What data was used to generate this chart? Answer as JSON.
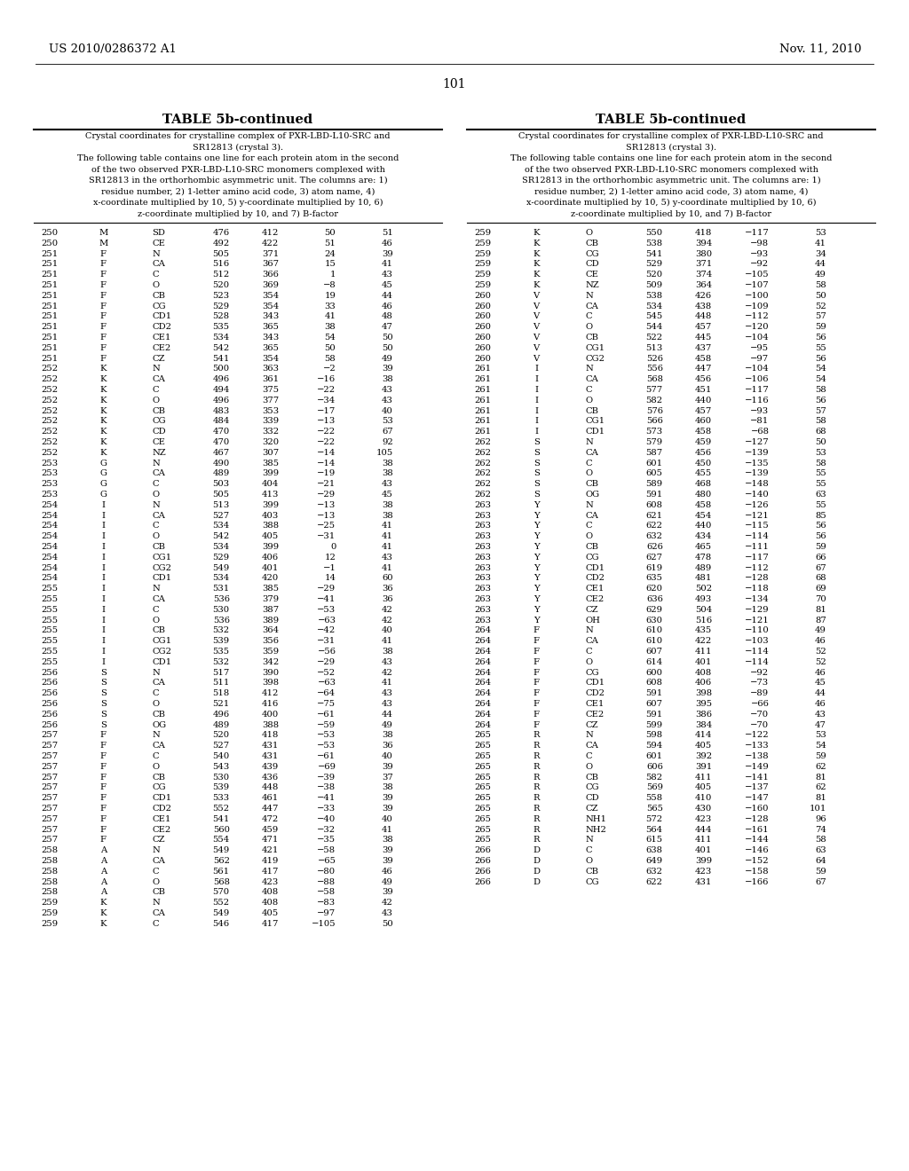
{
  "page_header_left": "US 2010/0286372 A1",
  "page_header_right": "Nov. 11, 2010",
  "page_number": "101",
  "table_title": "TABLE 5b-continued",
  "description_lines": [
    "Crystal coordinates for crystalline complex of PXR-LBD-L10-SRC and",
    "SR12813 (crystal 3).",
    "The following table contains one line for each protein atom in the second",
    "of the two observed PXR-LBD-L10-SRC monomers complexed with",
    "SR12813 in the orthorhombic asymmetric unit. The columns are: 1)",
    "residue number, 2) 1-letter amino acid code, 3) atom name, 4)",
    "x-coordinate multiplied by 10, 5) y-coordinate multiplied by 10, 6)",
    "z-coordinate multiplied by 10, and 7) B-factor"
  ],
  "left_table_data": [
    [
      "250",
      "M",
      "SD",
      "476",
      "412",
      "50",
      "51"
    ],
    [
      "250",
      "M",
      "CE",
      "492",
      "422",
      "51",
      "46"
    ],
    [
      "251",
      "F",
      "N",
      "505",
      "371",
      "24",
      "39"
    ],
    [
      "251",
      "F",
      "CA",
      "516",
      "367",
      "15",
      "41"
    ],
    [
      "251",
      "F",
      "C",
      "512",
      "366",
      "1",
      "43"
    ],
    [
      "251",
      "F",
      "O",
      "520",
      "369",
      "−8",
      "45"
    ],
    [
      "251",
      "F",
      "CB",
      "523",
      "354",
      "19",
      "44"
    ],
    [
      "251",
      "F",
      "CG",
      "529",
      "354",
      "33",
      "46"
    ],
    [
      "251",
      "F",
      "CD1",
      "528",
      "343",
      "41",
      "48"
    ],
    [
      "251",
      "F",
      "CD2",
      "535",
      "365",
      "38",
      "47"
    ],
    [
      "251",
      "F",
      "CE1",
      "534",
      "343",
      "54",
      "50"
    ],
    [
      "251",
      "F",
      "CE2",
      "542",
      "365",
      "50",
      "50"
    ],
    [
      "251",
      "F",
      "CZ",
      "541",
      "354",
      "58",
      "49"
    ],
    [
      "252",
      "K",
      "N",
      "500",
      "363",
      "−2",
      "39"
    ],
    [
      "252",
      "K",
      "CA",
      "496",
      "361",
      "−16",
      "38"
    ],
    [
      "252",
      "K",
      "C",
      "494",
      "375",
      "−22",
      "43"
    ],
    [
      "252",
      "K",
      "O",
      "496",
      "377",
      "−34",
      "43"
    ],
    [
      "252",
      "K",
      "CB",
      "483",
      "353",
      "−17",
      "40"
    ],
    [
      "252",
      "K",
      "CG",
      "484",
      "339",
      "−13",
      "53"
    ],
    [
      "252",
      "K",
      "CD",
      "470",
      "332",
      "−22",
      "67"
    ],
    [
      "252",
      "K",
      "CE",
      "470",
      "320",
      "−22",
      "92"
    ],
    [
      "252",
      "K",
      "NZ",
      "467",
      "307",
      "−14",
      "105"
    ],
    [
      "253",
      "G",
      "N",
      "490",
      "385",
      "−14",
      "38"
    ],
    [
      "253",
      "G",
      "CA",
      "489",
      "399",
      "−19",
      "38"
    ],
    [
      "253",
      "G",
      "C",
      "503",
      "404",
      "−21",
      "43"
    ],
    [
      "253",
      "G",
      "O",
      "505",
      "413",
      "−29",
      "45"
    ],
    [
      "254",
      "I",
      "N",
      "513",
      "399",
      "−13",
      "38"
    ],
    [
      "254",
      "I",
      "CA",
      "527",
      "403",
      "−13",
      "38"
    ],
    [
      "254",
      "I",
      "C",
      "534",
      "388",
      "−25",
      "41"
    ],
    [
      "254",
      "I",
      "O",
      "542",
      "405",
      "−31",
      "41"
    ],
    [
      "254",
      "I",
      "CB",
      "534",
      "399",
      "0",
      "41"
    ],
    [
      "254",
      "I",
      "CG1",
      "529",
      "406",
      "12",
      "43"
    ],
    [
      "254",
      "I",
      "CG2",
      "549",
      "401",
      "−1",
      "41"
    ],
    [
      "254",
      "I",
      "CD1",
      "534",
      "420",
      "14",
      "60"
    ],
    [
      "255",
      "I",
      "N",
      "531",
      "385",
      "−29",
      "36"
    ],
    [
      "255",
      "I",
      "CA",
      "536",
      "379",
      "−41",
      "36"
    ],
    [
      "255",
      "I",
      "C",
      "530",
      "387",
      "−53",
      "42"
    ],
    [
      "255",
      "I",
      "O",
      "536",
      "389",
      "−63",
      "42"
    ],
    [
      "255",
      "I",
      "CB",
      "532",
      "364",
      "−42",
      "40"
    ],
    [
      "255",
      "I",
      "CG1",
      "539",
      "356",
      "−31",
      "41"
    ],
    [
      "255",
      "I",
      "CG2",
      "535",
      "359",
      "−56",
      "38"
    ],
    [
      "255",
      "I",
      "CD1",
      "532",
      "342",
      "−29",
      "43"
    ],
    [
      "256",
      "S",
      "N",
      "517",
      "390",
      "−52",
      "42"
    ],
    [
      "256",
      "S",
      "CA",
      "511",
      "398",
      "−63",
      "41"
    ],
    [
      "256",
      "S",
      "C",
      "518",
      "412",
      "−64",
      "43"
    ],
    [
      "256",
      "S",
      "O",
      "521",
      "416",
      "−75",
      "43"
    ],
    [
      "256",
      "S",
      "CB",
      "496",
      "400",
      "−61",
      "44"
    ],
    [
      "256",
      "S",
      "OG",
      "489",
      "388",
      "−59",
      "49"
    ],
    [
      "257",
      "F",
      "N",
      "520",
      "418",
      "−53",
      "38"
    ],
    [
      "257",
      "F",
      "CA",
      "527",
      "431",
      "−53",
      "36"
    ],
    [
      "257",
      "F",
      "C",
      "540",
      "431",
      "−61",
      "40"
    ],
    [
      "257",
      "F",
      "O",
      "543",
      "439",
      "−69",
      "39"
    ],
    [
      "257",
      "F",
      "CB",
      "530",
      "436",
      "−39",
      "37"
    ],
    [
      "257",
      "F",
      "CG",
      "539",
      "448",
      "−38",
      "38"
    ],
    [
      "257",
      "F",
      "CD1",
      "533",
      "461",
      "−41",
      "39"
    ],
    [
      "257",
      "F",
      "CD2",
      "552",
      "447",
      "−33",
      "39"
    ],
    [
      "257",
      "F",
      "CE1",
      "541",
      "472",
      "−40",
      "40"
    ],
    [
      "257",
      "F",
      "CE2",
      "560",
      "459",
      "−32",
      "41"
    ],
    [
      "257",
      "F",
      "CZ",
      "554",
      "471",
      "−35",
      "38"
    ],
    [
      "258",
      "A",
      "N",
      "549",
      "421",
      "−58",
      "39"
    ],
    [
      "258",
      "A",
      "CA",
      "562",
      "419",
      "−65",
      "39"
    ],
    [
      "258",
      "A",
      "C",
      "561",
      "417",
      "−80",
      "46"
    ],
    [
      "258",
      "A",
      "O",
      "568",
      "423",
      "−88",
      "49"
    ],
    [
      "258",
      "A",
      "CB",
      "570",
      "408",
      "−58",
      "39"
    ],
    [
      "259",
      "K",
      "N",
      "552",
      "408",
      "−83",
      "42"
    ],
    [
      "259",
      "K",
      "CA",
      "549",
      "405",
      "−97",
      "43"
    ],
    [
      "259",
      "K",
      "C",
      "546",
      "417",
      "−105",
      "50"
    ]
  ],
  "right_table_data": [
    [
      "259",
      "K",
      "O",
      "550",
      "418",
      "−117",
      "53"
    ],
    [
      "259",
      "K",
      "CB",
      "538",
      "394",
      "−98",
      "41"
    ],
    [
      "259",
      "K",
      "CG",
      "541",
      "380",
      "−93",
      "34"
    ],
    [
      "259",
      "K",
      "CD",
      "529",
      "371",
      "−92",
      "44"
    ],
    [
      "259",
      "K",
      "CE",
      "520",
      "374",
      "−105",
      "49"
    ],
    [
      "259",
      "K",
      "NZ",
      "509",
      "364",
      "−107",
      "58"
    ],
    [
      "260",
      "V",
      "N",
      "538",
      "426",
      "−100",
      "50"
    ],
    [
      "260",
      "V",
      "CA",
      "534",
      "438",
      "−109",
      "52"
    ],
    [
      "260",
      "V",
      "C",
      "545",
      "448",
      "−112",
      "57"
    ],
    [
      "260",
      "V",
      "O",
      "544",
      "457",
      "−120",
      "59"
    ],
    [
      "260",
      "V",
      "CB",
      "522",
      "445",
      "−104",
      "56"
    ],
    [
      "260",
      "V",
      "CG1",
      "513",
      "437",
      "−95",
      "55"
    ],
    [
      "260",
      "V",
      "CG2",
      "526",
      "458",
      "−97",
      "56"
    ],
    [
      "261",
      "I",
      "N",
      "556",
      "447",
      "−104",
      "54"
    ],
    [
      "261",
      "I",
      "CA",
      "568",
      "456",
      "−106",
      "54"
    ],
    [
      "261",
      "I",
      "C",
      "577",
      "451",
      "−117",
      "58"
    ],
    [
      "261",
      "I",
      "O",
      "582",
      "440",
      "−116",
      "56"
    ],
    [
      "261",
      "I",
      "CB",
      "576",
      "457",
      "−93",
      "57"
    ],
    [
      "261",
      "I",
      "CG1",
      "566",
      "460",
      "−81",
      "58"
    ],
    [
      "261",
      "I",
      "CD1",
      "573",
      "458",
      "−68",
      "68"
    ],
    [
      "262",
      "S",
      "N",
      "579",
      "459",
      "−127",
      "50"
    ],
    [
      "262",
      "S",
      "CA",
      "587",
      "456",
      "−139",
      "53"
    ],
    [
      "262",
      "S",
      "C",
      "601",
      "450",
      "−135",
      "58"
    ],
    [
      "262",
      "S",
      "O",
      "605",
      "455",
      "−139",
      "55"
    ],
    [
      "262",
      "S",
      "CB",
      "589",
      "468",
      "−148",
      "55"
    ],
    [
      "262",
      "S",
      "OG",
      "591",
      "480",
      "−140",
      "63"
    ],
    [
      "263",
      "Y",
      "N",
      "608",
      "458",
      "−126",
      "55"
    ],
    [
      "263",
      "Y",
      "CA",
      "621",
      "454",
      "−121",
      "85"
    ],
    [
      "263",
      "Y",
      "C",
      "622",
      "440",
      "−115",
      "56"
    ],
    [
      "263",
      "Y",
      "O",
      "632",
      "434",
      "−114",
      "56"
    ],
    [
      "263",
      "Y",
      "CB",
      "626",
      "465",
      "−111",
      "59"
    ],
    [
      "263",
      "Y",
      "CG",
      "627",
      "478",
      "−117",
      "66"
    ],
    [
      "263",
      "Y",
      "CD1",
      "619",
      "489",
      "−112",
      "67"
    ],
    [
      "263",
      "Y",
      "CD2",
      "635",
      "481",
      "−128",
      "68"
    ],
    [
      "263",
      "Y",
      "CE1",
      "620",
      "502",
      "−118",
      "69"
    ],
    [
      "263",
      "Y",
      "CE2",
      "636",
      "493",
      "−134",
      "70"
    ],
    [
      "263",
      "Y",
      "CZ",
      "629",
      "504",
      "−129",
      "81"
    ],
    [
      "263",
      "Y",
      "OH",
      "630",
      "516",
      "−121",
      "87"
    ],
    [
      "264",
      "F",
      "N",
      "610",
      "435",
      "−110",
      "49"
    ],
    [
      "264",
      "F",
      "CA",
      "610",
      "422",
      "−103",
      "46"
    ],
    [
      "264",
      "F",
      "C",
      "607",
      "411",
      "−114",
      "52"
    ],
    [
      "264",
      "F",
      "O",
      "614",
      "401",
      "−114",
      "52"
    ],
    [
      "264",
      "F",
      "CG",
      "600",
      "408",
      "−92",
      "46"
    ],
    [
      "264",
      "F",
      "CD1",
      "608",
      "406",
      "−73",
      "45"
    ],
    [
      "264",
      "F",
      "CD2",
      "591",
      "398",
      "−89",
      "44"
    ],
    [
      "264",
      "F",
      "CE1",
      "607",
      "395",
      "−66",
      "46"
    ],
    [
      "264",
      "F",
      "CE2",
      "591",
      "386",
      "−70",
      "43"
    ],
    [
      "264",
      "F",
      "CZ",
      "599",
      "384",
      "−70",
      "47"
    ],
    [
      "265",
      "R",
      "N",
      "598",
      "414",
      "−122",
      "53"
    ],
    [
      "265",
      "R",
      "CA",
      "594",
      "405",
      "−133",
      "54"
    ],
    [
      "265",
      "R",
      "C",
      "601",
      "392",
      "−138",
      "59"
    ],
    [
      "265",
      "R",
      "O",
      "606",
      "391",
      "−149",
      "62"
    ],
    [
      "265",
      "R",
      "CB",
      "582",
      "411",
      "−141",
      "81"
    ],
    [
      "265",
      "R",
      "CG",
      "569",
      "405",
      "−137",
      "62"
    ],
    [
      "265",
      "R",
      "CD",
      "558",
      "410",
      "−147",
      "81"
    ],
    [
      "265",
      "R",
      "CZ",
      "565",
      "430",
      "−160",
      "101"
    ],
    [
      "265",
      "R",
      "NH1",
      "572",
      "423",
      "−128",
      "96"
    ],
    [
      "265",
      "R",
      "NH2",
      "564",
      "444",
      "−161",
      "74"
    ],
    [
      "265",
      "R",
      "N",
      "615",
      "411",
      "−144",
      "58"
    ],
    [
      "266",
      "D",
      "C",
      "638",
      "401",
      "−146",
      "63"
    ],
    [
      "266",
      "D",
      "O",
      "649",
      "399",
      "−152",
      "64"
    ],
    [
      "266",
      "D",
      "CB",
      "632",
      "423",
      "−158",
      "59"
    ],
    [
      "266",
      "D",
      "CG",
      "622",
      "431",
      "−166",
      "67"
    ]
  ]
}
